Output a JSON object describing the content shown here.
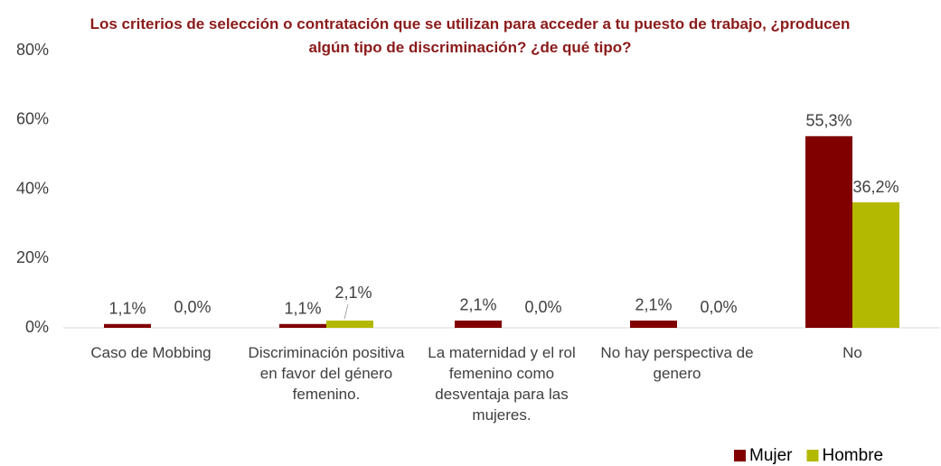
{
  "chart_data": {
    "type": "bar",
    "title": "Los criterios de selección o contratación que se utilizan para acceder a tu puesto de trabajo, ¿producen algún tipo de discriminación? ¿de qué tipo?",
    "categories": [
      "Caso de Mobbing",
      "Discriminación positiva en favor del género femenino.",
      "La maternidad y el rol femenino como desventaja para las mujeres.",
      "No hay perspectiva de genero",
      "No"
    ],
    "series": [
      {
        "name": "Mujer",
        "color": "#800000",
        "values": [
          1.1,
          1.1,
          2.1,
          2.1,
          55.3
        ],
        "value_labels": [
          "1,1%",
          "1,1%",
          "2,1%",
          "2,1%",
          "55,3%"
        ]
      },
      {
        "name": "Hombre",
        "color": "#b3b800",
        "values": [
          0,
          2.1,
          0,
          0,
          36.2
        ],
        "value_labels": [
          "0,0%",
          "2,1%",
          "0,0%",
          "0,0%",
          "36,2%"
        ]
      }
    ],
    "ylim": [
      0,
      80
    ],
    "yticks": [
      {
        "value": 0,
        "label": "0%"
      },
      {
        "value": 20,
        "label": "20%"
      },
      {
        "value": 40,
        "label": "40%"
      },
      {
        "value": 60,
        "label": "60%"
      },
      {
        "value": 80,
        "label": "80%"
      }
    ],
    "legend": "bottom-right"
  }
}
